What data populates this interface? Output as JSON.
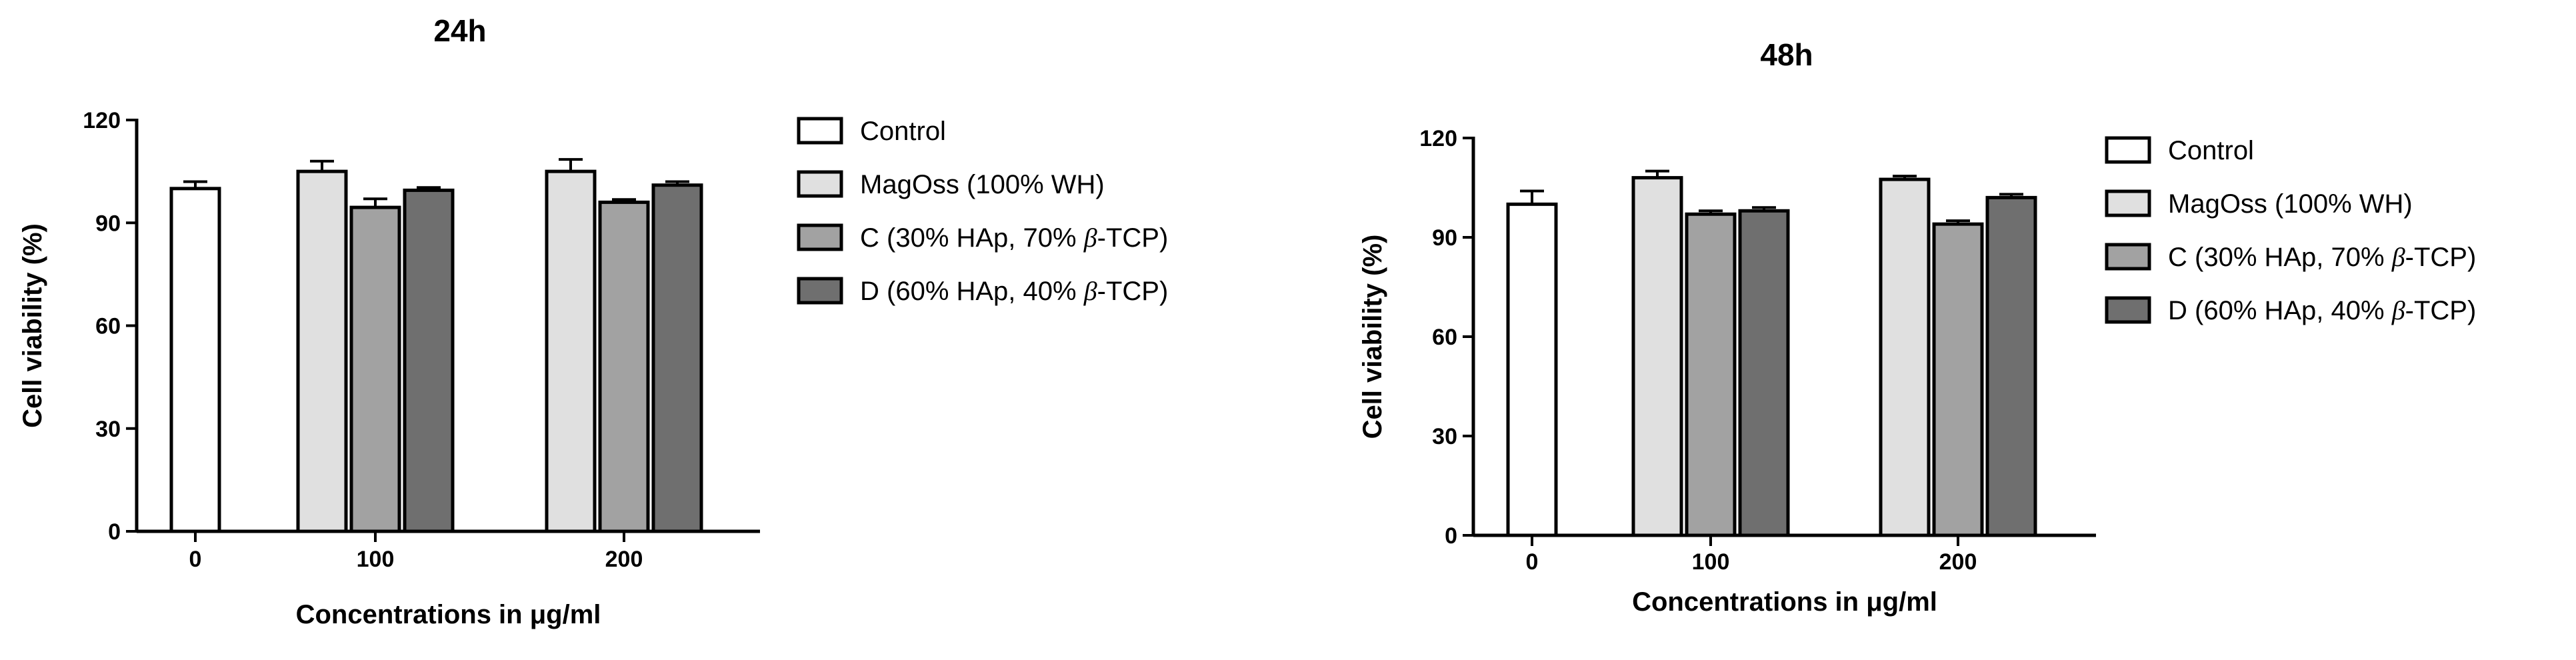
{
  "chart_data": [
    {
      "type": "bar",
      "title": "24h",
      "xlabel": "Concentrations in μg/ml",
      "ylabel": "Cell viability (%)",
      "ylim": [
        0,
        120
      ],
      "yticks": [
        "0",
        "30",
        "60",
        "90",
        "120"
      ],
      "categories": [
        "0",
        "100",
        "200"
      ],
      "series": [
        {
          "name": "Control",
          "values": [
            100,
            null,
            null
          ],
          "errors": [
            2,
            null,
            null
          ],
          "color": "#ffffff"
        },
        {
          "name": "MagOss (100% WH)",
          "values": [
            null,
            105,
            105
          ],
          "errors": [
            null,
            3,
            3.5
          ],
          "color": "#e0e0e0"
        },
        {
          "name": "C (30% HAp, 70% β-TCP)",
          "values": [
            null,
            94.5,
            96
          ],
          "errors": [
            null,
            2.5,
            0.8
          ],
          "color": "#a2a2a2"
        },
        {
          "name": "D (60% HAp, 40% β-TCP)",
          "values": [
            null,
            99.5,
            101
          ],
          "errors": [
            null,
            0.8,
            1
          ],
          "color": "#6f6f6f"
        }
      ],
      "legend": "right"
    },
    {
      "type": "bar",
      "title": "48h",
      "xlabel": "Concentrations in μg/ml",
      "ylabel": "Cell viability (%)",
      "ylim": [
        0,
        120
      ],
      "yticks": [
        "0",
        "30",
        "60",
        "90",
        "120"
      ],
      "categories": [
        "0",
        "100",
        "200"
      ],
      "series": [
        {
          "name": "Control",
          "values": [
            100,
            null,
            null
          ],
          "errors": [
            4,
            null,
            null
          ],
          "color": "#ffffff"
        },
        {
          "name": "MagOss (100% WH)",
          "values": [
            null,
            108,
            107.5
          ],
          "errors": [
            null,
            2,
            1
          ],
          "color": "#e0e0e0"
        },
        {
          "name": "C (30% HAp, 70% β-TCP)",
          "values": [
            null,
            97,
            94
          ],
          "errors": [
            null,
            1,
            1
          ],
          "color": "#a2a2a2"
        },
        {
          "name": "D (60% HAp, 40% β-TCP)",
          "values": [
            null,
            98,
            102
          ],
          "errors": [
            null,
            1,
            1
          ],
          "color": "#6f6f6f"
        }
      ],
      "legend": "right"
    }
  ]
}
